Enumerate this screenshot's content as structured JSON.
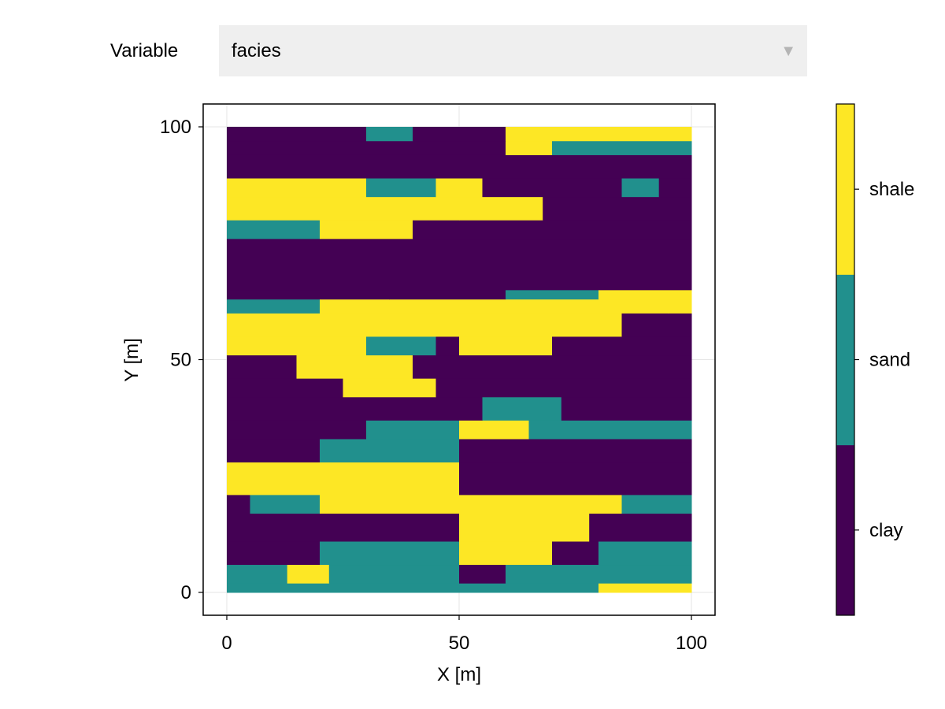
{
  "controls": {
    "variable_label": "Variable",
    "selected": "facies",
    "dropdown_icon": "triangle-down-icon"
  },
  "chart_data": {
    "type": "heatmap",
    "xlabel": "X [m]",
    "ylabel": "Y [m]",
    "xlim": [
      0,
      100
    ],
    "ylim": [
      0,
      100
    ],
    "x_ticks": [
      "0",
      "50",
      "100"
    ],
    "y_ticks": [
      "0",
      "50",
      "100"
    ],
    "grid": true,
    "categories": [
      "clay",
      "sand",
      "shale"
    ],
    "colors": {
      "clay": "#440154",
      "sand": "#21908d",
      "shale": "#fde725"
    },
    "colorbar": {
      "position": "right",
      "labels": [
        "clay",
        "sand",
        "shale"
      ]
    },
    "layers": [
      {
        "y": [
          0,
          2
        ],
        "segments": [
          [
            0,
            80,
            "sand"
          ],
          [
            80,
            100,
            "shale"
          ]
        ]
      },
      {
        "y": [
          2,
          6
        ],
        "segments": [
          [
            0,
            13,
            "sand"
          ],
          [
            13,
            22,
            "shale"
          ],
          [
            22,
            50,
            "sand"
          ],
          [
            50,
            60,
            "clay"
          ],
          [
            60,
            100,
            "sand"
          ]
        ]
      },
      {
        "y": [
          6,
          11
        ],
        "segments": [
          [
            0,
            20,
            "clay"
          ],
          [
            20,
            50,
            "sand"
          ],
          [
            50,
            70,
            "shale"
          ],
          [
            70,
            80,
            "clay"
          ],
          [
            80,
            100,
            "sand"
          ]
        ]
      },
      {
        "y": [
          11,
          17
        ],
        "segments": [
          [
            0,
            50,
            "clay"
          ],
          [
            50,
            78,
            "shale"
          ],
          [
            78,
            100,
            "clay"
          ]
        ]
      },
      {
        "y": [
          17,
          21
        ],
        "segments": [
          [
            0,
            5,
            "clay"
          ],
          [
            5,
            20,
            "sand"
          ],
          [
            20,
            50,
            "shale"
          ],
          [
            50,
            85,
            "shale"
          ],
          [
            85,
            100,
            "sand"
          ]
        ]
      },
      {
        "y": [
          21,
          28
        ],
        "segments": [
          [
            0,
            35,
            "shale"
          ],
          [
            35,
            50,
            "shale"
          ],
          [
            50,
            80,
            "clay"
          ],
          [
            80,
            100,
            "clay"
          ]
        ]
      },
      {
        "y": [
          28,
          33
        ],
        "segments": [
          [
            0,
            20,
            "clay"
          ],
          [
            20,
            50,
            "sand"
          ],
          [
            50,
            100,
            "clay"
          ]
        ]
      },
      {
        "y": [
          33,
          37
        ],
        "segments": [
          [
            0,
            30,
            "clay"
          ],
          [
            30,
            50,
            "sand"
          ],
          [
            50,
            65,
            "shale"
          ],
          [
            65,
            100,
            "sand"
          ]
        ]
      },
      {
        "y": [
          37,
          42
        ],
        "segments": [
          [
            0,
            48,
            "clay"
          ],
          [
            48,
            55,
            "clay"
          ],
          [
            55,
            72,
            "sand"
          ],
          [
            72,
            100,
            "clay"
          ]
        ]
      },
      {
        "y": [
          42,
          46
        ],
        "segments": [
          [
            0,
            25,
            "clay"
          ],
          [
            25,
            45,
            "shale"
          ],
          [
            45,
            100,
            "clay"
          ]
        ]
      },
      {
        "y": [
          46,
          51
        ],
        "segments": [
          [
            0,
            15,
            "clay"
          ],
          [
            15,
            40,
            "shale"
          ],
          [
            40,
            60,
            "clay"
          ],
          [
            60,
            100,
            "clay"
          ]
        ]
      },
      {
        "y": [
          51,
          55
        ],
        "segments": [
          [
            0,
            30,
            "shale"
          ],
          [
            30,
            45,
            "sand"
          ],
          [
            45,
            50,
            "clay"
          ],
          [
            50,
            70,
            "shale"
          ],
          [
            70,
            100,
            "clay"
          ]
        ]
      },
      {
        "y": [
          55,
          60
        ],
        "segments": [
          [
            0,
            85,
            "shale"
          ],
          [
            85,
            100,
            "clay"
          ]
        ]
      },
      {
        "y": [
          60,
          63
        ],
        "segments": [
          [
            0,
            20,
            "sand"
          ],
          [
            20,
            95,
            "shale"
          ],
          [
            95,
            100,
            "shale"
          ]
        ]
      },
      {
        "y": [
          63,
          65
        ],
        "segments": [
          [
            0,
            35,
            "clay"
          ],
          [
            35,
            60,
            "clay"
          ],
          [
            60,
            80,
            "sand"
          ],
          [
            80,
            100,
            "shale"
          ]
        ]
      },
      {
        "y": [
          65,
          76
        ],
        "segments": [
          [
            0,
            100,
            "clay"
          ]
        ]
      },
      {
        "y": [
          76,
          80
        ],
        "segments": [
          [
            0,
            20,
            "sand"
          ],
          [
            20,
            40,
            "shale"
          ],
          [
            40,
            100,
            "clay"
          ]
        ]
      },
      {
        "y": [
          80,
          85
        ],
        "segments": [
          [
            0,
            25,
            "shale"
          ],
          [
            25,
            50,
            "shale"
          ],
          [
            50,
            68,
            "shale"
          ],
          [
            68,
            100,
            "clay"
          ]
        ]
      },
      {
        "y": [
          85,
          89
        ],
        "segments": [
          [
            0,
            30,
            "shale"
          ],
          [
            30,
            45,
            "sand"
          ],
          [
            45,
            55,
            "shale"
          ],
          [
            55,
            85,
            "clay"
          ],
          [
            85,
            93,
            "sand"
          ],
          [
            93,
            100,
            "clay"
          ]
        ]
      },
      {
        "y": [
          89,
          94
        ],
        "segments": [
          [
            0,
            60,
            "clay"
          ],
          [
            60,
            100,
            "clay"
          ]
        ]
      },
      {
        "y": [
          94,
          97
        ],
        "segments": [
          [
            0,
            60,
            "clay"
          ],
          [
            60,
            70,
            "shale"
          ],
          [
            70,
            100,
            "sand"
          ]
        ]
      },
      {
        "y": [
          97,
          100
        ],
        "segments": [
          [
            0,
            30,
            "clay"
          ],
          [
            30,
            40,
            "sand"
          ],
          [
            40,
            60,
            "clay"
          ],
          [
            60,
            100,
            "shale"
          ]
        ]
      }
    ]
  }
}
